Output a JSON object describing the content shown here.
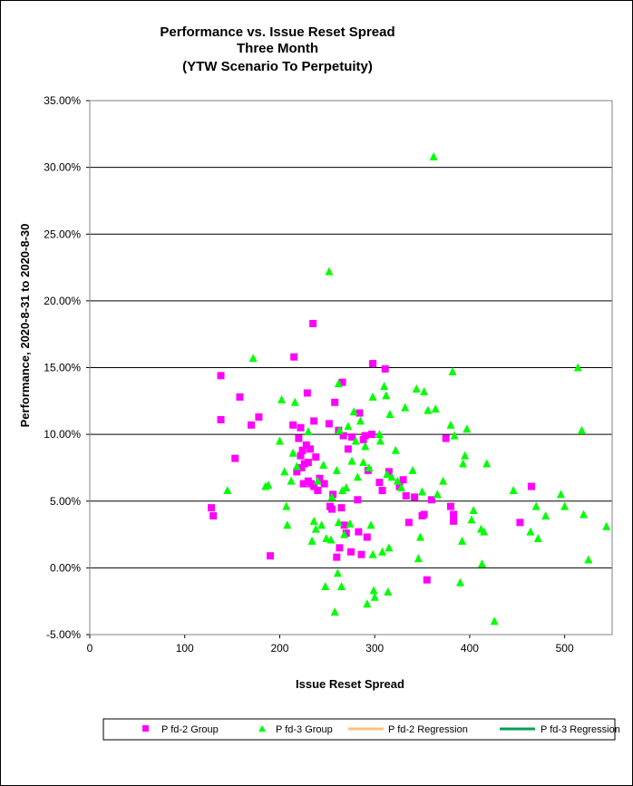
{
  "chart_data": {
    "type": "scatter",
    "title": [
      "Performance vs. Issue Reset Spread",
      "Three Month",
      "(YTW Scenario To Perpetuity)"
    ],
    "xlabel": "Issue  Reset  Spread",
    "ylabel": "Performance, 2020-8-31  to 2020-8-30",
    "xlim": [
      0,
      550
    ],
    "ylim": [
      -5,
      35
    ],
    "x_ticks": [
      0,
      100,
      200,
      300,
      400,
      500
    ],
    "y_ticks": [
      -5,
      0,
      5,
      10,
      15,
      20,
      25,
      30,
      35
    ],
    "y_tick_labels": [
      "-5.00%",
      "0.00%",
      "5.00%",
      "10.00%",
      "15.00%",
      "20.00%",
      "25.00%",
      "30.00%",
      "35.00%"
    ],
    "grid": "horizontal major gridlines",
    "legend_position": "bottom",
    "colors": {
      "pfd2": "#ff00ff",
      "pfd3": "#00ff00",
      "pfd2_regression": "#ffc080",
      "pfd3_regression": "#00a050",
      "gridline": "#000000"
    },
    "series": [
      {
        "name": "P fd-2 Group",
        "marker": "square",
        "points": [
          [
            128,
            4.5
          ],
          [
            130,
            3.9
          ],
          [
            138,
            14.4
          ],
          [
            138,
            11.1
          ],
          [
            153,
            8.2
          ],
          [
            158,
            12.8
          ],
          [
            170,
            10.7
          ],
          [
            178,
            11.3
          ],
          [
            190,
            0.9
          ],
          [
            215,
            15.8
          ],
          [
            214,
            10.7
          ],
          [
            218,
            7.2
          ],
          [
            220,
            9.7
          ],
          [
            222,
            8.4
          ],
          [
            222,
            10.5
          ],
          [
            223,
            7.5
          ],
          [
            224,
            8.8
          ],
          [
            225,
            6.3
          ],
          [
            226,
            7.8
          ],
          [
            228,
            9.2
          ],
          [
            229,
            13.1
          ],
          [
            230,
            6.5
          ],
          [
            230,
            7.9
          ],
          [
            232,
            8.9
          ],
          [
            233,
            6.3
          ],
          [
            235,
            18.3
          ],
          [
            236,
            6.1
          ],
          [
            236,
            11.0
          ],
          [
            238,
            8.3
          ],
          [
            240,
            5.8
          ],
          [
            242,
            6.7
          ],
          [
            247,
            6.3
          ],
          [
            252,
            10.8
          ],
          [
            253,
            4.6
          ],
          [
            255,
            4.4
          ],
          [
            256,
            5.5
          ],
          [
            258,
            12.4
          ],
          [
            260,
            0.8
          ],
          [
            262,
            10.3
          ],
          [
            263,
            1.5
          ],
          [
            265,
            4.5
          ],
          [
            266,
            13.9
          ],
          [
            267,
            9.9
          ],
          [
            268,
            3.2
          ],
          [
            270,
            2.6
          ],
          [
            272,
            8.9
          ],
          [
            275,
            1.2
          ],
          [
            276,
            9.8
          ],
          [
            282,
            5.1
          ],
          [
            283,
            2.7
          ],
          [
            284,
            11.6
          ],
          [
            286,
            1.0
          ],
          [
            288,
            9.6
          ],
          [
            290,
            9.9
          ],
          [
            292,
            2.3
          ],
          [
            293,
            7.3
          ],
          [
            297,
            10.0
          ],
          [
            298,
            15.3
          ],
          [
            305,
            6.4
          ],
          [
            308,
            5.8
          ],
          [
            311,
            14.9
          ],
          [
            315,
            7.2
          ],
          [
            326,
            6.1
          ],
          [
            330,
            6.6
          ],
          [
            333,
            5.4
          ],
          [
            336,
            3.4
          ],
          [
            342,
            5.3
          ],
          [
            350,
            3.9
          ],
          [
            352,
            4.0
          ],
          [
            355,
            -0.9
          ],
          [
            360,
            5.1
          ],
          [
            375,
            9.7
          ],
          [
            380,
            4.6
          ],
          [
            383,
            4.0
          ],
          [
            383,
            3.5
          ],
          [
            453,
            3.4
          ],
          [
            465,
            6.1
          ]
        ]
      },
      {
        "name": "P fd-3 Group",
        "marker": "triangle",
        "points": [
          [
            145,
            5.8
          ],
          [
            172,
            15.7
          ],
          [
            185,
            6.1
          ],
          [
            188,
            6.2
          ],
          [
            200,
            9.5
          ],
          [
            202,
            12.6
          ],
          [
            205,
            7.2
          ],
          [
            207,
            4.6
          ],
          [
            208,
            3.2
          ],
          [
            212,
            6.5
          ],
          [
            214,
            8.6
          ],
          [
            216,
            12.4
          ],
          [
            218,
            7.6
          ],
          [
            230,
            10.2
          ],
          [
            234,
            2.0
          ],
          [
            236,
            3.5
          ],
          [
            238,
            2.9
          ],
          [
            240,
            6.5
          ],
          [
            244,
            3.2
          ],
          [
            246,
            7.7
          ],
          [
            248,
            -1.4
          ],
          [
            249,
            2.2
          ],
          [
            252,
            22.2
          ],
          [
            254,
            2.1
          ],
          [
            255,
            5.3
          ],
          [
            258,
            -3.3
          ],
          [
            260,
            7.3
          ],
          [
            261,
            -0.4
          ],
          [
            262,
            3.4
          ],
          [
            262,
            13.8
          ],
          [
            263,
            10.3
          ],
          [
            265,
            -1.4
          ],
          [
            266,
            5.8
          ],
          [
            268,
            2.5
          ],
          [
            270,
            6.0
          ],
          [
            272,
            10.6
          ],
          [
            274,
            3.3
          ],
          [
            276,
            8.0
          ],
          [
            278,
            11.7
          ],
          [
            280,
            9.5
          ],
          [
            282,
            6.8
          ],
          [
            285,
            11.0
          ],
          [
            288,
            7.9
          ],
          [
            290,
            9.1
          ],
          [
            292,
            -2.7
          ],
          [
            294,
            7.5
          ],
          [
            296,
            3.2
          ],
          [
            298,
            12.8
          ],
          [
            298,
            1.0
          ],
          [
            299,
            -1.7
          ],
          [
            300,
            -2.2
          ],
          [
            305,
            10.0
          ],
          [
            306,
            9.5
          ],
          [
            308,
            1.2
          ],
          [
            310,
            13.6
          ],
          [
            312,
            12.9
          ],
          [
            313,
            7.0
          ],
          [
            314,
            -1.8
          ],
          [
            315,
            1.5
          ],
          [
            316,
            11.5
          ],
          [
            318,
            6.8
          ],
          [
            322,
            8.8
          ],
          [
            324,
            6.5
          ],
          [
            328,
            6.0
          ],
          [
            332,
            12.0
          ],
          [
            340,
            7.3
          ],
          [
            344,
            13.4
          ],
          [
            346,
            0.7
          ],
          [
            348,
            2.3
          ],
          [
            350,
            5.7
          ],
          [
            352,
            13.2
          ],
          [
            356,
            11.8
          ],
          [
            362,
            30.8
          ],
          [
            364,
            11.9
          ],
          [
            366,
            5.5
          ],
          [
            372,
            6.5
          ],
          [
            380,
            10.7
          ],
          [
            382,
            14.7
          ],
          [
            384,
            9.9
          ],
          [
            390,
            -1.1
          ],
          [
            392,
            2.0
          ],
          [
            393,
            7.8
          ],
          [
            395,
            8.4
          ],
          [
            397,
            10.4
          ],
          [
            402,
            3.6
          ],
          [
            404,
            4.3
          ],
          [
            412,
            2.9
          ],
          [
            413,
            0.3
          ],
          [
            415,
            2.7
          ],
          [
            418,
            7.8
          ],
          [
            426,
            -4.0
          ],
          [
            446,
            5.8
          ],
          [
            464,
            2.7
          ],
          [
            470,
            4.6
          ],
          [
            472,
            2.2
          ],
          [
            480,
            3.9
          ],
          [
            496,
            5.5
          ],
          [
            500,
            4.6
          ],
          [
            514,
            15.0
          ],
          [
            518,
            10.3
          ],
          [
            520,
            4.0
          ],
          [
            525,
            0.6
          ],
          [
            544,
            3.1
          ]
        ]
      },
      {
        "name": "P fd-2 Regression",
        "marker": "line",
        "points": []
      },
      {
        "name": "P fd-3 Regression",
        "marker": "line",
        "points": []
      }
    ]
  }
}
